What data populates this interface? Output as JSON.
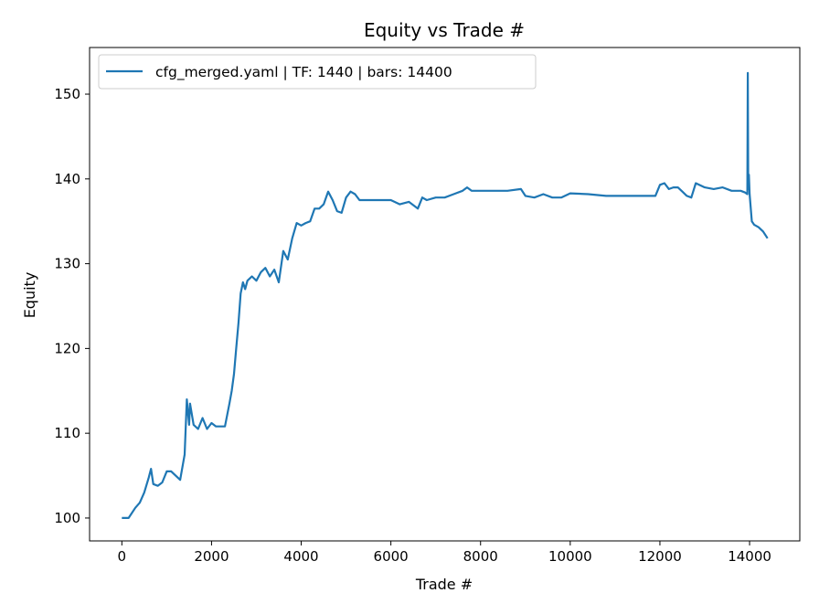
{
  "chart_data": {
    "type": "line",
    "title": "Equity vs Trade #",
    "xlabel": "Trade #",
    "ylabel": "Equity",
    "xlim": [
      -720,
      15120
    ],
    "ylim": [
      97.3,
      155.5
    ],
    "xticks": [
      0,
      2000,
      4000,
      6000,
      8000,
      10000,
      12000,
      14000
    ],
    "yticks": [
      100,
      110,
      120,
      130,
      140,
      150
    ],
    "grid": false,
    "legend_position": "upper left",
    "series": [
      {
        "name": "cfg_merged.yaml | TF: 1440 | bars: 14400",
        "color": "#1f77b4",
        "x": [
          0,
          150,
          300,
          400,
          500,
          600,
          650,
          700,
          800,
          900,
          1000,
          1100,
          1200,
          1300,
          1400,
          1450,
          1500,
          1520,
          1600,
          1700,
          1800,
          1900,
          2000,
          2100,
          2200,
          2300,
          2400,
          2450,
          2500,
          2550,
          2600,
          2650,
          2700,
          2750,
          2800,
          2900,
          3000,
          3100,
          3200,
          3300,
          3400,
          3500,
          3600,
          3700,
          3800,
          3900,
          4000,
          4100,
          4200,
          4300,
          4400,
          4500,
          4600,
          4700,
          4800,
          4900,
          5000,
          5100,
          5200,
          5300,
          5400,
          5500,
          5600,
          5800,
          6000,
          6200,
          6400,
          6600,
          6700,
          6800,
          7000,
          7200,
          7400,
          7600,
          7700,
          7800,
          8000,
          8300,
          8600,
          8900,
          9000,
          9200,
          9400,
          9600,
          9800,
          10000,
          10400,
          10800,
          11200,
          11600,
          11800,
          11900,
          12000,
          12100,
          12200,
          12300,
          12400,
          12500,
          12600,
          12700,
          12800,
          13000,
          13200,
          13400,
          13600,
          13800,
          13900,
          13950,
          13960,
          13970,
          13985,
          14000,
          14050,
          14100,
          14200,
          14300,
          14400
        ],
        "values": [
          100.0,
          100.0,
          101.2,
          101.8,
          103.0,
          104.8,
          105.8,
          104.0,
          103.8,
          104.2,
          105.5,
          105.5,
          105.0,
          104.5,
          107.5,
          114.0,
          111.0,
          113.5,
          111.0,
          110.5,
          111.8,
          110.5,
          111.2,
          110.8,
          110.8,
          110.8,
          113.5,
          115.0,
          117.0,
          120.0,
          123.0,
          126.5,
          127.8,
          127.0,
          128.0,
          128.5,
          128.0,
          129.0,
          129.5,
          128.5,
          129.3,
          127.8,
          131.5,
          130.5,
          133.0,
          134.8,
          134.5,
          134.8,
          135.0,
          136.5,
          136.5,
          137.0,
          138.5,
          137.5,
          136.2,
          136.0,
          137.8,
          138.5,
          138.2,
          137.5,
          137.5,
          137.5,
          137.5,
          137.5,
          137.5,
          137.0,
          137.3,
          136.5,
          137.8,
          137.5,
          137.8,
          137.8,
          138.2,
          138.6,
          139.0,
          138.6,
          138.6,
          138.6,
          138.6,
          138.8,
          138.0,
          137.8,
          138.2,
          137.8,
          137.8,
          138.3,
          138.2,
          138.0,
          138.0,
          138.0,
          138.0,
          138.0,
          139.3,
          139.5,
          138.8,
          139.0,
          139.0,
          138.5,
          138.0,
          137.8,
          139.5,
          139.0,
          138.8,
          139.0,
          138.6,
          138.6,
          138.4,
          138.2,
          152.5,
          138.8,
          140.5,
          138.2,
          135.0,
          134.6,
          134.3,
          133.8,
          133.0
        ]
      }
    ]
  }
}
